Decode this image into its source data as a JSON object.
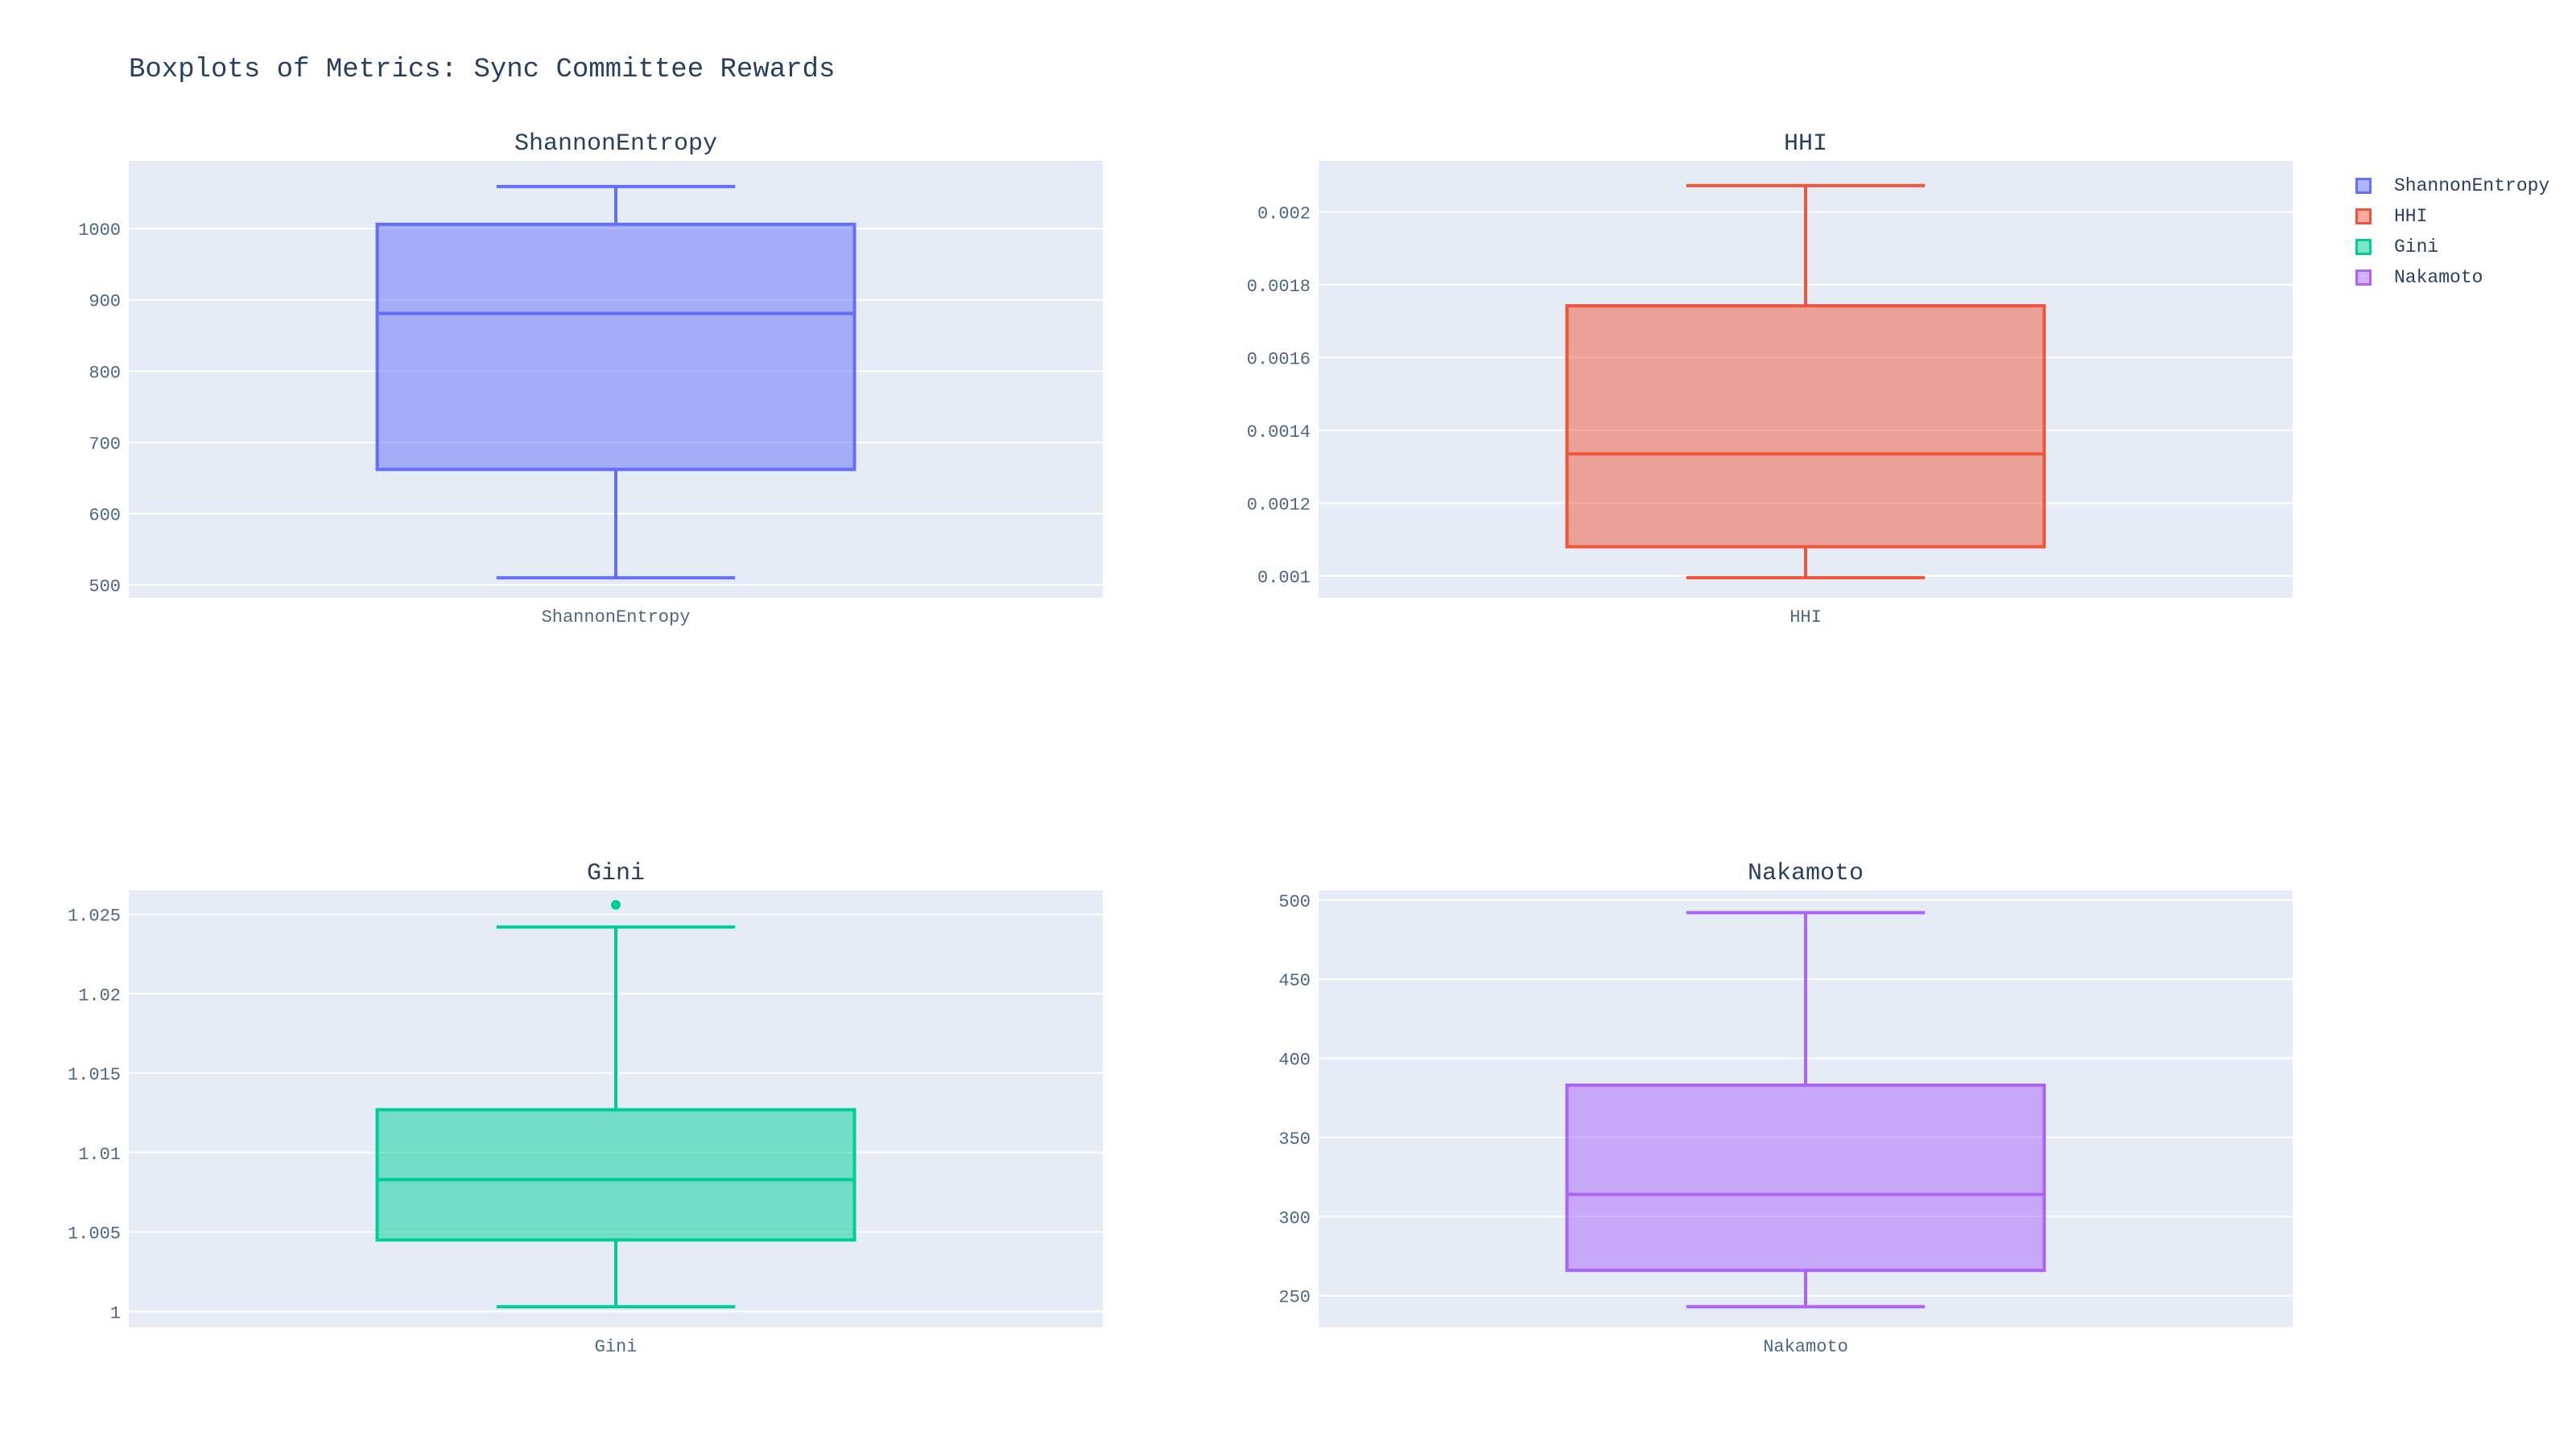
{
  "title": "Boxplots of Metrics: Sync Committee Rewards",
  "colors": {
    "plot_bg": "#E5ECF6",
    "grid": "#ffffff",
    "text": "#2a3f5f",
    "tick_text": "#506784"
  },
  "legend": {
    "placement": "top-right",
    "items": [
      {
        "label": "ShannonEntropy",
        "color": "#636EFA"
      },
      {
        "label": "HHI",
        "color": "#EF553B"
      },
      {
        "label": "Gini",
        "color": "#00CC96"
      },
      {
        "label": "Nakamoto",
        "color": "#AB63FA"
      }
    ]
  },
  "chart_data": [
    {
      "type": "box",
      "title": "ShannonEntropy",
      "category": "ShannonEntropy",
      "color": "#636EFA",
      "ylim": [
        482,
        1095
      ],
      "yticks": [
        500,
        600,
        700,
        800,
        900,
        1000
      ],
      "ytick_labels": [
        "500",
        "600",
        "700",
        "800",
        "900",
        "1000"
      ],
      "box": {
        "lowerfence": 510,
        "q1": 662,
        "median": 881,
        "q3": 1006,
        "upperfence": 1059
      },
      "outliers": [],
      "grid": true
    },
    {
      "type": "box",
      "title": "HHI",
      "category": "HHI",
      "color": "#EF553B",
      "ylim": [
        0.00094,
        0.00214
      ],
      "yticks": [
        0.001,
        0.0012,
        0.0014,
        0.0016,
        0.0018,
        0.002
      ],
      "ytick_labels": [
        "0.001",
        "0.0012",
        "0.0014",
        "0.0016",
        "0.0018",
        "0.002"
      ],
      "box": {
        "lowerfence": 0.000995,
        "q1": 0.00108,
        "median": 0.001335,
        "q3": 0.001742,
        "upperfence": 0.002072
      },
      "outliers": [],
      "grid": true
    },
    {
      "type": "box",
      "title": "Gini",
      "category": "Gini",
      "color": "#00CC96",
      "ylim": [
        0.999,
        1.0265
      ],
      "yticks": [
        1,
        1.005,
        1.01,
        1.015,
        1.02,
        1.025
      ],
      "ytick_labels": [
        "1",
        "1.005",
        "1.01",
        "1.015",
        "1.02",
        "1.025"
      ],
      "box": {
        "lowerfence": 1.0003,
        "q1": 1.0045,
        "median": 1.0083,
        "q3": 1.0127,
        "upperfence": 1.0242
      },
      "outliers": [
        1.0256
      ],
      "grid": true
    },
    {
      "type": "box",
      "title": "Nakamoto",
      "category": "Nakamoto",
      "color": "#AB63FA",
      "ylim": [
        230,
        506
      ],
      "yticks": [
        250,
        300,
        350,
        400,
        450,
        500
      ],
      "ytick_labels": [
        "250",
        "300",
        "350",
        "400",
        "450",
        "500"
      ],
      "box": {
        "lowerfence": 243,
        "q1": 266,
        "median": 314,
        "q3": 383,
        "upperfence": 492
      },
      "outliers": [],
      "grid": true
    }
  ]
}
